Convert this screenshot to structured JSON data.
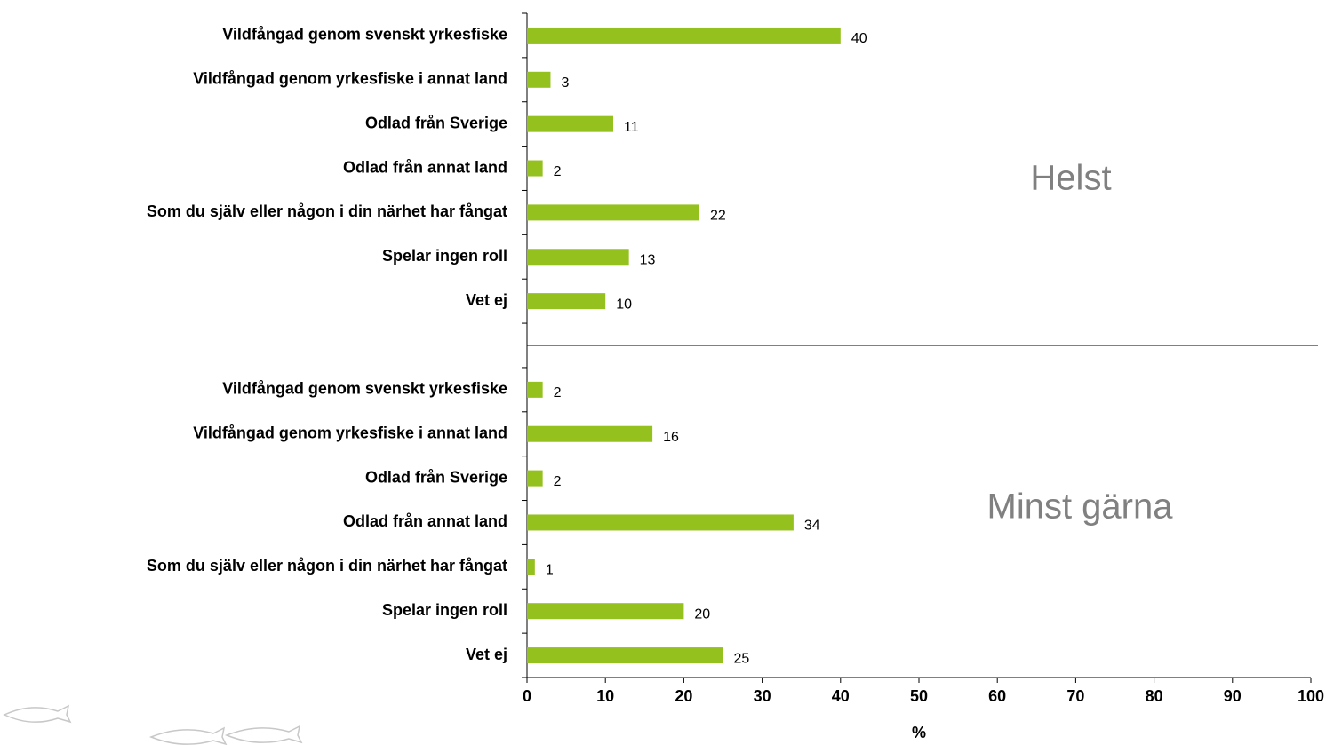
{
  "chart_data": {
    "type": "bar",
    "orientation": "horizontal",
    "color": "#95c11f",
    "categories": [
      "Vildfångad genom svenskt yrkesfiske",
      "Vildfångad genom yrkesfiske i annat land",
      "Odlad från Sverige",
      "Odlad från annat land",
      "Som du själv eller någon i din närhet har fångat",
      "Spelar ingen roll",
      "Vet ej",
      null,
      "Vildfångad genom svenskt yrkesfiske",
      "Vildfångad genom yrkesfiske i annat land",
      "Odlad från Sverige",
      "Odlad från annat land",
      "Som du själv eller någon i din närhet har fångat",
      "Spelar ingen roll",
      "Vet ej"
    ],
    "values": [
      40,
      3,
      11,
      2,
      22,
      13,
      10,
      null,
      2,
      16,
      2,
      34,
      1,
      20,
      25
    ],
    "xlim": [
      0,
      100
    ],
    "xticks": [
      0,
      10,
      20,
      30,
      40,
      50,
      60,
      70,
      80,
      90,
      100
    ],
    "xlabel": "%",
    "annotations": [
      "Helst",
      "Minst gärna"
    ]
  }
}
